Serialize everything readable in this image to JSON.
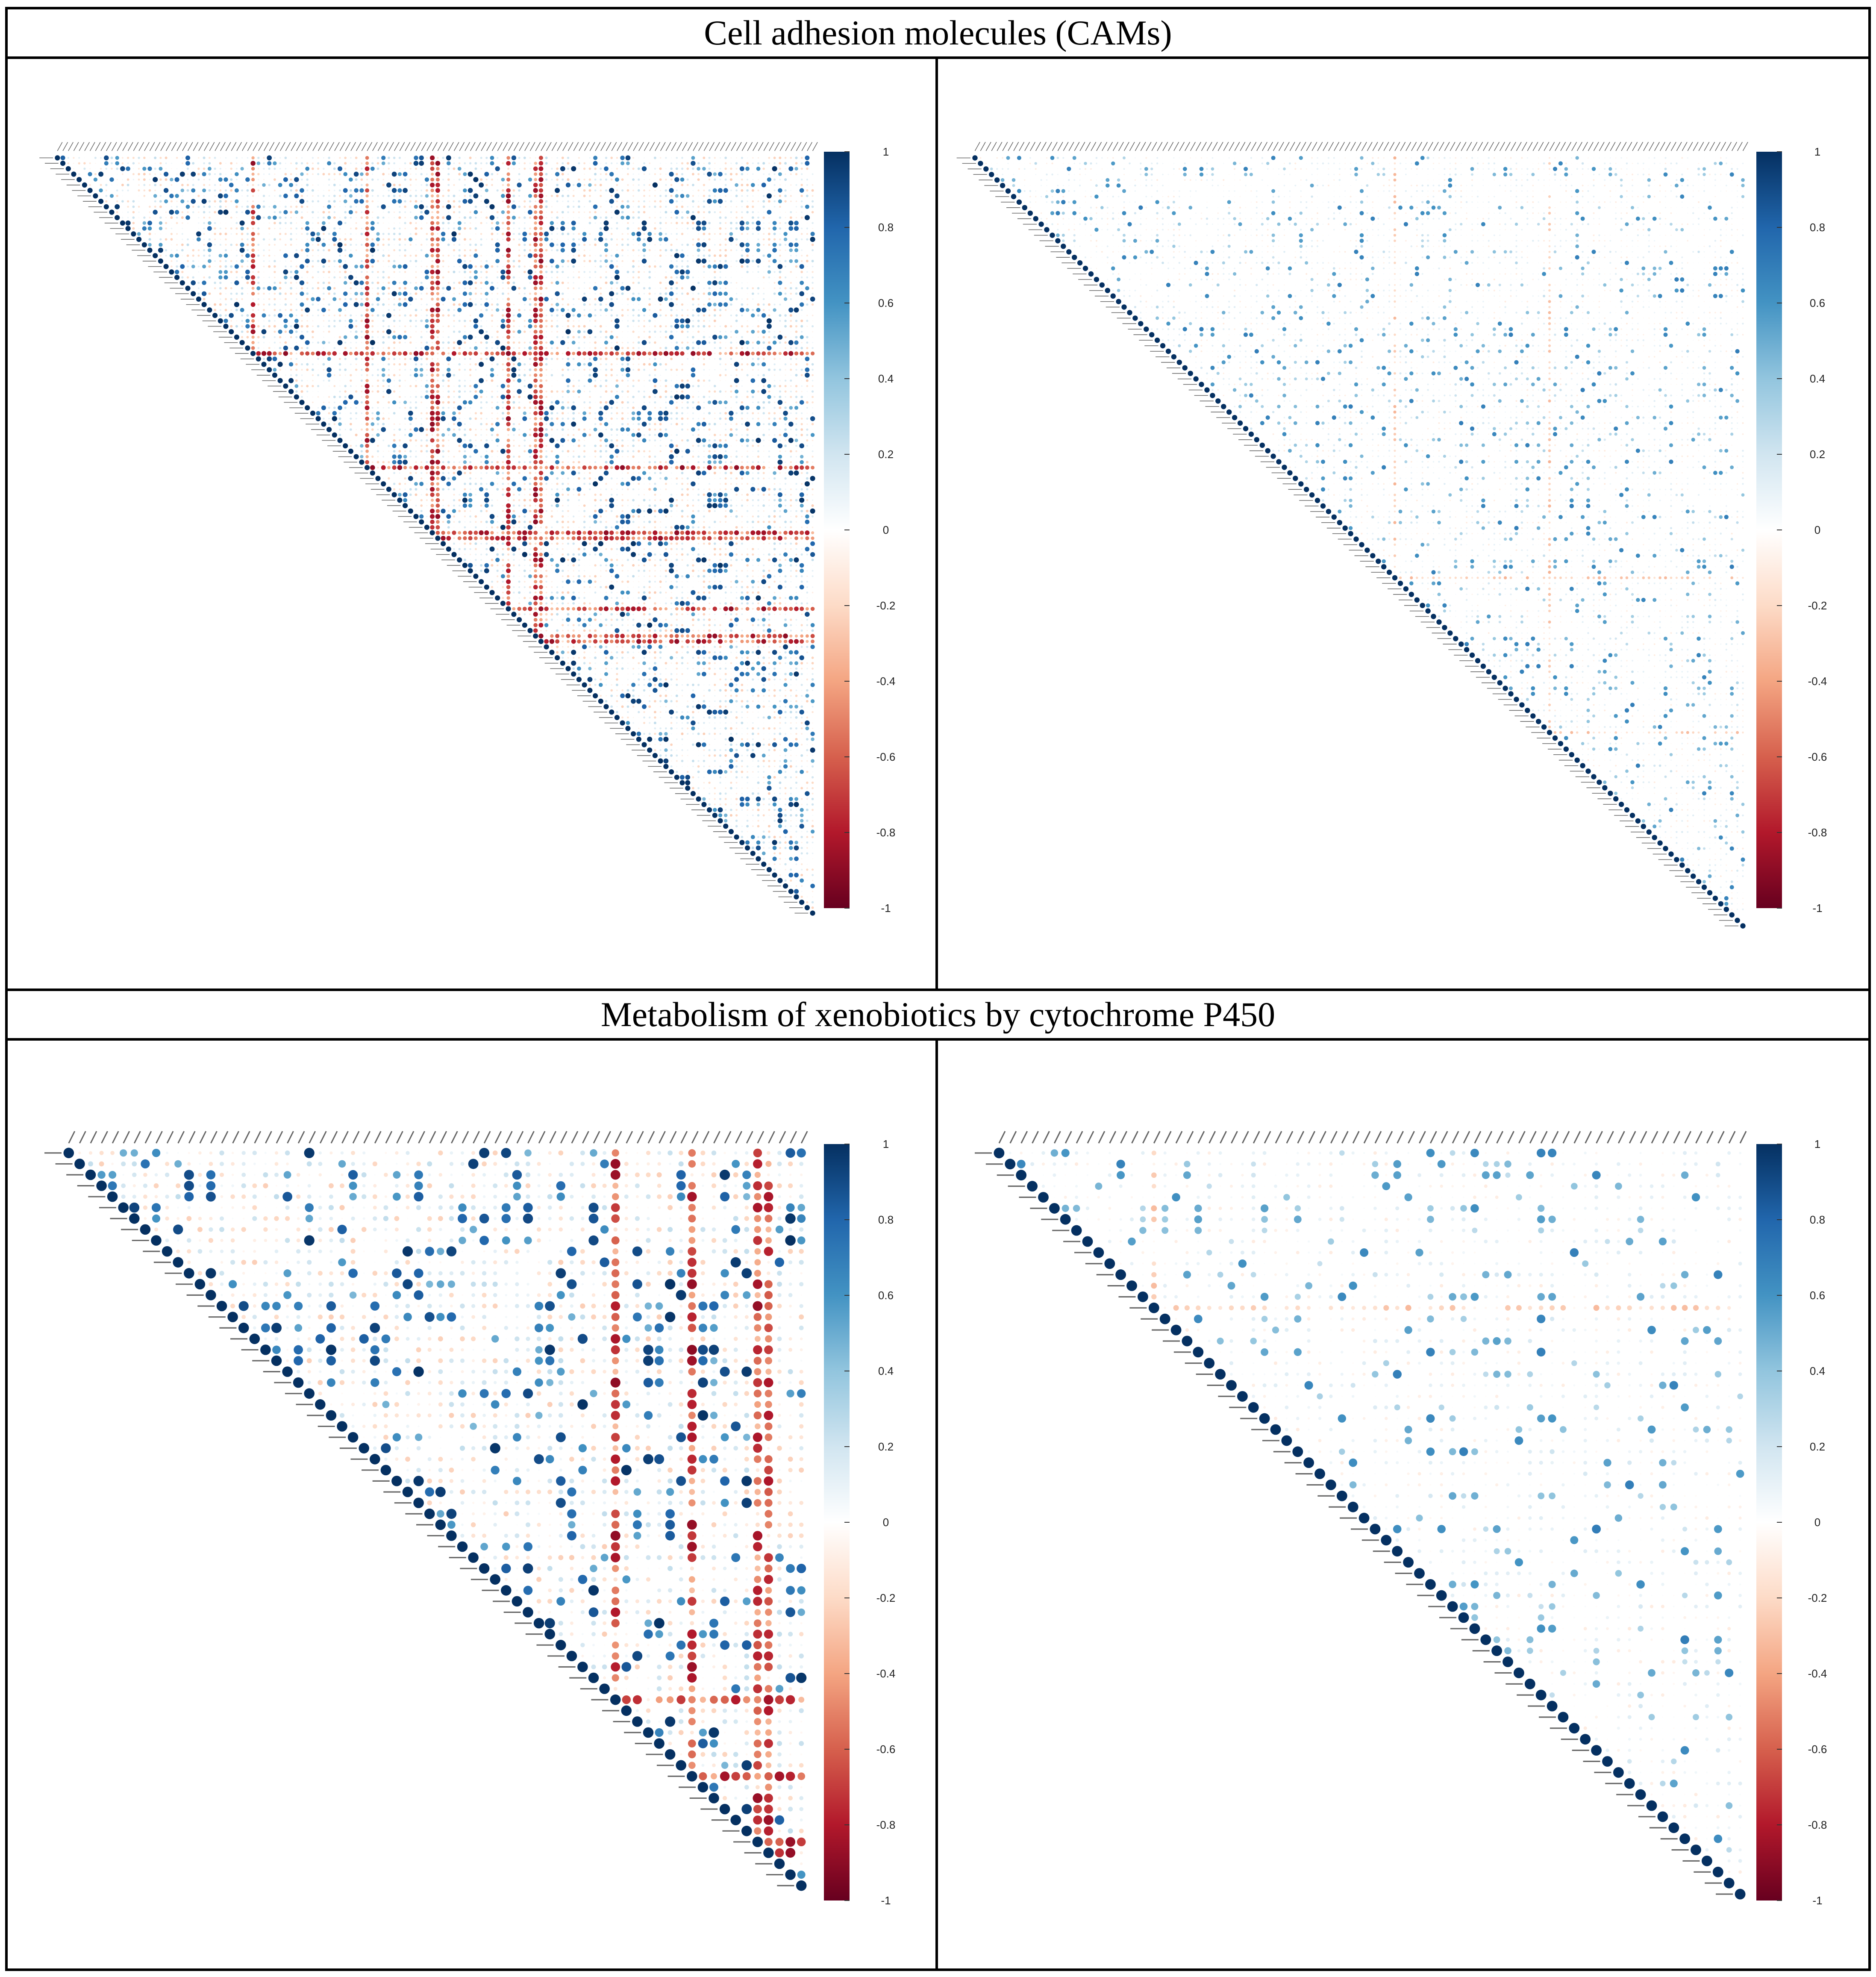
{
  "figure": {
    "sections": [
      {
        "title": "Cell adhesion molecules (CAMs)"
      },
      {
        "title": "Metabolism of xenobiotics by cytochrome P450"
      }
    ]
  },
  "chart_data": [
    {
      "type": "heatmap",
      "subtype": "upper-triangular correlation plot (circles)",
      "section": "Cell adhesion molecules (CAMs)",
      "panel": "left",
      "n_genes": 140,
      "gene_labels_legible": false,
      "diagonal_value": 1,
      "colorbar": {
        "min": -1,
        "max": 1,
        "ticks": [
          "1",
          "0.8",
          "0.6",
          "0.4",
          "0.2",
          "0",
          "-0.2",
          "-0.4",
          "-0.6",
          "-0.8",
          "-1"
        ],
        "low_color": "#67001f",
        "mid_color": "#ffffff",
        "high_color": "#053061"
      },
      "pattern": "dense blocks of strong positive correlation with several rows/columns of strong negative correlation"
    },
    {
      "type": "heatmap",
      "subtype": "upper-triangular correlation plot (circles)",
      "section": "Cell adhesion molecules (CAMs)",
      "panel": "right",
      "n_genes": 140,
      "gene_labels_legible": false,
      "diagonal_value": 1,
      "colorbar": {
        "min": -1,
        "max": 1,
        "ticks": [
          "1",
          "0.8",
          "0.6",
          "0.4",
          "0.2",
          "0",
          "-0.2",
          "-0.4",
          "-0.6",
          "-0.8",
          "-1"
        ],
        "low_color": "#67001f",
        "mid_color": "#ffffff",
        "high_color": "#053061"
      },
      "pattern": "mostly weak positive correlations, few negative"
    },
    {
      "type": "heatmap",
      "subtype": "upper-triangular correlation plot (circles)",
      "section": "Metabolism of xenobiotics by cytochrome P450",
      "panel": "left",
      "n_genes": 68,
      "gene_labels_legible": false,
      "diagonal_value": 1,
      "colorbar": {
        "min": -1,
        "max": 1,
        "ticks": [
          "1",
          "0.8",
          "0.6",
          "0.4",
          "0.2",
          "0",
          "-0.2",
          "-0.4",
          "-0.6",
          "-0.8",
          "-1"
        ],
        "low_color": "#67001f",
        "mid_color": "#ffffff",
        "high_color": "#053061"
      },
      "pattern": "large blocks of near-1 positive correlation among CYP / GST / UGT genes, scattered negatives"
    },
    {
      "type": "heatmap",
      "subtype": "upper-triangular correlation plot (circles)",
      "section": "Metabolism of xenobiotics by cytochrome P450",
      "panel": "right",
      "n_genes": 68,
      "gene_labels_legible": false,
      "diagonal_value": 1,
      "colorbar": {
        "min": -1,
        "max": 1,
        "ticks": [
          "1",
          "0.8",
          "0.6",
          "0.4",
          "0.2",
          "0",
          "-0.2",
          "-0.4",
          "-0.6",
          "-0.8",
          "-1"
        ],
        "low_color": "#67001f",
        "mid_color": "#ffffff",
        "high_color": "#053061"
      },
      "pattern": "mostly near-zero correlations with a few strong positive off-diagonal pairs"
    }
  ]
}
